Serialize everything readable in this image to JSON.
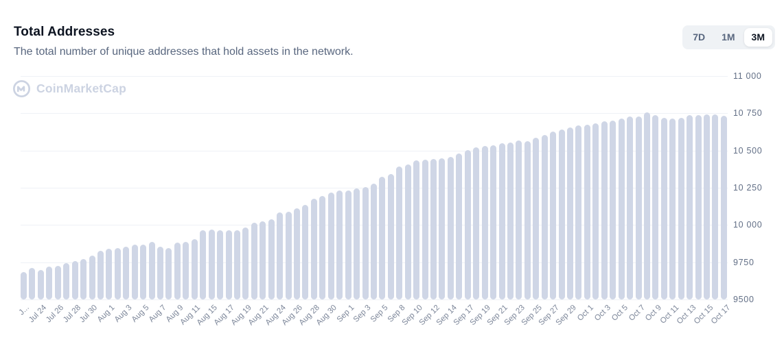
{
  "header": {
    "title": "Total Addresses",
    "subtitle": "The total number of unique addresses that hold assets in the network.",
    "range_buttons": [
      {
        "label": "7D",
        "active": false
      },
      {
        "label": "1M",
        "active": false
      },
      {
        "label": "3M",
        "active": true
      }
    ]
  },
  "watermark": {
    "icon": "coinmarketcap-logo-icon",
    "brand": "CoinMarketCap",
    "color": "#ccd3e2"
  },
  "chart_data": {
    "type": "bar",
    "title": "Total Addresses",
    "xlabel": "",
    "ylabel": "",
    "ylim": [
      9500,
      11000
    ],
    "grid": true,
    "legend": false,
    "bar_color": "#cfd6e6",
    "grid_color": "#eef1f6",
    "y_axis_side": "right",
    "y_ticks": [
      {
        "label": "11 000",
        "value": 11000
      },
      {
        "label": "10 750",
        "value": 10750
      },
      {
        "label": "10 500",
        "value": 10500
      },
      {
        "label": "10 250",
        "value": 10250
      },
      {
        "label": "10 000",
        "value": 10000
      },
      {
        "label": "9750",
        "value": 9750
      },
      {
        "label": "9500",
        "value": 9500
      }
    ],
    "x_tick_every": 2,
    "x_tick_labels": [
      "J...",
      "Jul 24",
      "Jul 26",
      "Jul 28",
      "Jul 30",
      "Aug 1",
      "Aug 3",
      "Aug 5",
      "Aug 7",
      "Aug 9",
      "Aug 11",
      "Aug 15",
      "Aug 17",
      "Aug 19",
      "Aug 21",
      "Aug 24",
      "Aug 26",
      "Aug 28",
      "Aug 30",
      "Sep 1",
      "Sep 3",
      "Sep 5",
      "Sep 8",
      "Sep 10",
      "Sep 12",
      "Sep 14",
      "Sep 17",
      "Sep 19",
      "Sep 21",
      "Sep 23",
      "Sep 25",
      "Sep 27",
      "Sep 29",
      "Oct 1",
      "Oct 3",
      "Oct 5",
      "Oct 7",
      "Oct 9",
      "Oct 11",
      "Oct 13",
      "Oct 15",
      "Oct 17"
    ],
    "values": [
      9685,
      9712,
      9700,
      9721,
      9727,
      9744,
      9758,
      9773,
      9793,
      9827,
      9839,
      9847,
      9855,
      9870,
      9870,
      9886,
      9855,
      9847,
      9881,
      9886,
      9906,
      9963,
      9971,
      9966,
      9966,
      9963,
      9981,
      10017,
      10024,
      10040,
      10086,
      10091,
      10110,
      10133,
      10175,
      10194,
      10217,
      10230,
      10233,
      10245,
      10256,
      10276,
      10322,
      10341,
      10395,
      10406,
      10434,
      10441,
      10444,
      10449,
      10457,
      10480,
      10503,
      10523,
      10529,
      10534,
      10549,
      10554,
      10568,
      10562,
      10585,
      10603,
      10626,
      10642,
      10653,
      10668,
      10672,
      10683,
      10695,
      10699,
      10714,
      10727,
      10730,
      10755,
      10740,
      10719,
      10714,
      10719,
      10740,
      10740,
      10743,
      10743,
      10735
    ]
  }
}
